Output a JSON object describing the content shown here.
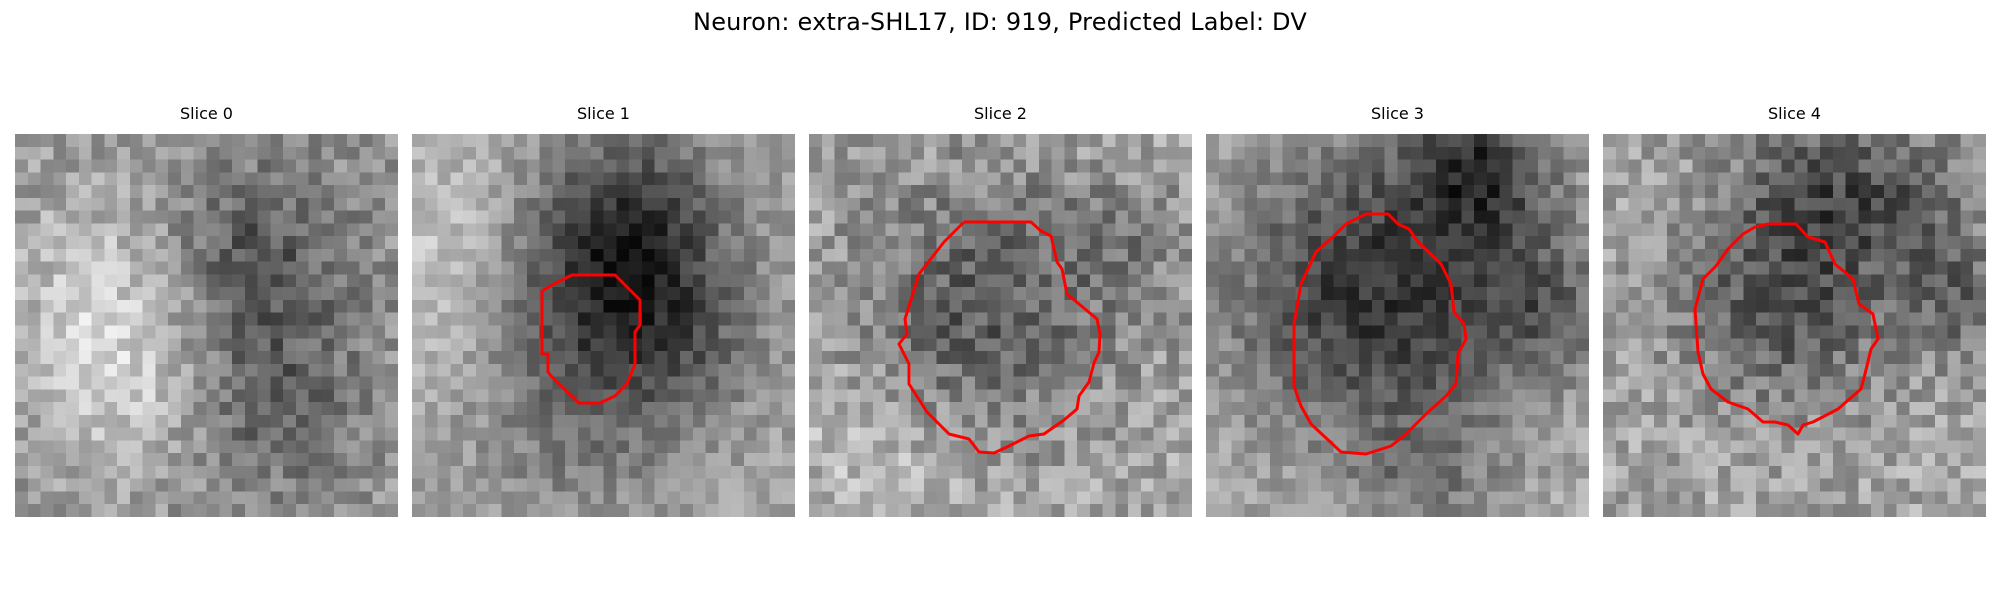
{
  "figure": {
    "title": "Neuron: extra-SHL17, ID: 919, Predicted Label: DV",
    "colormap": "gray",
    "contour_color": "#ff0000"
  },
  "panels": [
    {
      "title": "Slice 0",
      "has_contour": false
    },
    {
      "title": "Slice 1",
      "has_contour": true
    },
    {
      "title": "Slice 2",
      "has_contour": true
    },
    {
      "title": "Slice 3",
      "has_contour": true
    },
    {
      "title": "Slice 4",
      "has_contour": true
    }
  ]
}
